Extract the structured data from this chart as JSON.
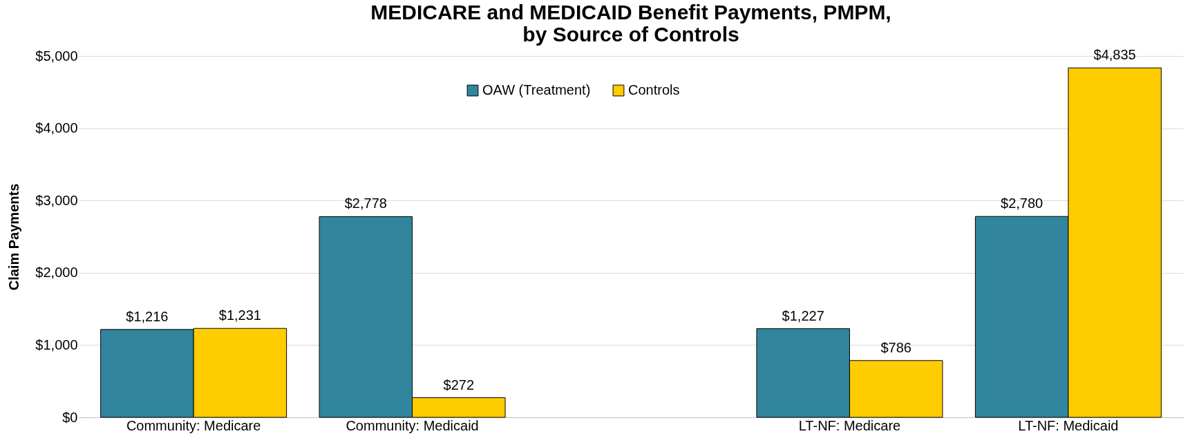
{
  "chart_data": {
    "type": "bar",
    "title": [
      "MEDICARE and MEDICAID Benefit Payments, PMPM,",
      "by Source of Controls"
    ],
    "ylabel": "Claim Payments",
    "categories": [
      "Community: Medicare",
      "Community: Medicaid",
      null,
      "LT-NF: Medicare",
      "LT-NF: Medicaid"
    ],
    "series": [
      {
        "name": "OAW (Treatment)",
        "color": "#31859c",
        "values": [
          1216,
          2778,
          null,
          1227,
          2780
        ],
        "value_labels": [
          "$1,216",
          "$2,778",
          null,
          "$1,227",
          "$2,780"
        ]
      },
      {
        "name": "Controls",
        "color": "#ffcc00",
        "values": [
          1231,
          272,
          null,
          786,
          4835
        ],
        "value_labels": [
          "$1,231",
          "$272",
          null,
          "$786",
          "$4,835"
        ]
      }
    ],
    "ylim": [
      0,
      5000
    ],
    "yticks": [
      {
        "value": 0,
        "label": "$0"
      },
      {
        "value": 1000,
        "label": "$1,000"
      },
      {
        "value": 2000,
        "label": "$2,000"
      },
      {
        "value": 3000,
        "label": "$3,000"
      },
      {
        "value": 4000,
        "label": "$4,000"
      },
      {
        "value": 5000,
        "label": "$5,000"
      }
    ],
    "grid": "y",
    "legend": "top"
  }
}
